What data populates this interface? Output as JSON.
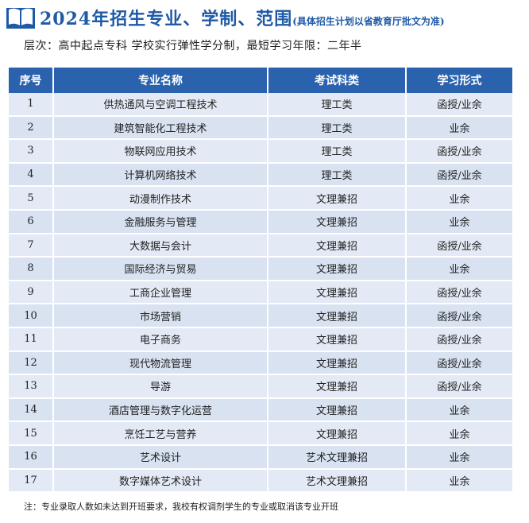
{
  "header": {
    "title": "2024年招生专业、学制、范围",
    "title_note": "(具体招生计划以省教育厅批文为准)",
    "subtitle": "层次：高中起点专科  学校实行弹性学分制，最短学习年限：二年半",
    "icon": "open-book-icon",
    "accent_color": "#1f5aa6"
  },
  "table": {
    "header_color": "#2b62ad",
    "columns": [
      "序号",
      "专业名称",
      "考试科类",
      "学习形式"
    ],
    "rows": [
      [
        "1",
        "供热通风与空调工程技术",
        "理工类",
        "函授/业余"
      ],
      [
        "2",
        "建筑智能化工程技术",
        "理工类",
        "业余"
      ],
      [
        "3",
        "物联网应用技术",
        "理工类",
        "函授/业余"
      ],
      [
        "4",
        "计算机网络技术",
        "理工类",
        "函授/业余"
      ],
      [
        "5",
        "动漫制作技术",
        "文理兼招",
        "业余"
      ],
      [
        "6",
        "金融服务与管理",
        "文理兼招",
        "业余"
      ],
      [
        "7",
        "大数据与会计",
        "文理兼招",
        "函授/业余"
      ],
      [
        "8",
        "国际经济与贸易",
        "文理兼招",
        "业余"
      ],
      [
        "9",
        "工商企业管理",
        "文理兼招",
        "函授/业余"
      ],
      [
        "10",
        "市场营销",
        "文理兼招",
        "函授/业余"
      ],
      [
        "11",
        "电子商务",
        "文理兼招",
        "函授/业余"
      ],
      [
        "12",
        "现代物流管理",
        "文理兼招",
        "函授/业余"
      ],
      [
        "13",
        "导游",
        "文理兼招",
        "函授/业余"
      ],
      [
        "14",
        "酒店管理与数字化运营",
        "文理兼招",
        "业余"
      ],
      [
        "15",
        "烹饪工艺与营养",
        "文理兼招",
        "业余"
      ],
      [
        "16",
        "艺术设计",
        "艺术文理兼招",
        "业余"
      ],
      [
        "17",
        "数字媒体艺术设计",
        "艺术文理兼招",
        "业余"
      ]
    ]
  },
  "footnote": "注：专业录取人数如未达到开班要求，我校有权调剂学生的专业或取消该专业开班"
}
